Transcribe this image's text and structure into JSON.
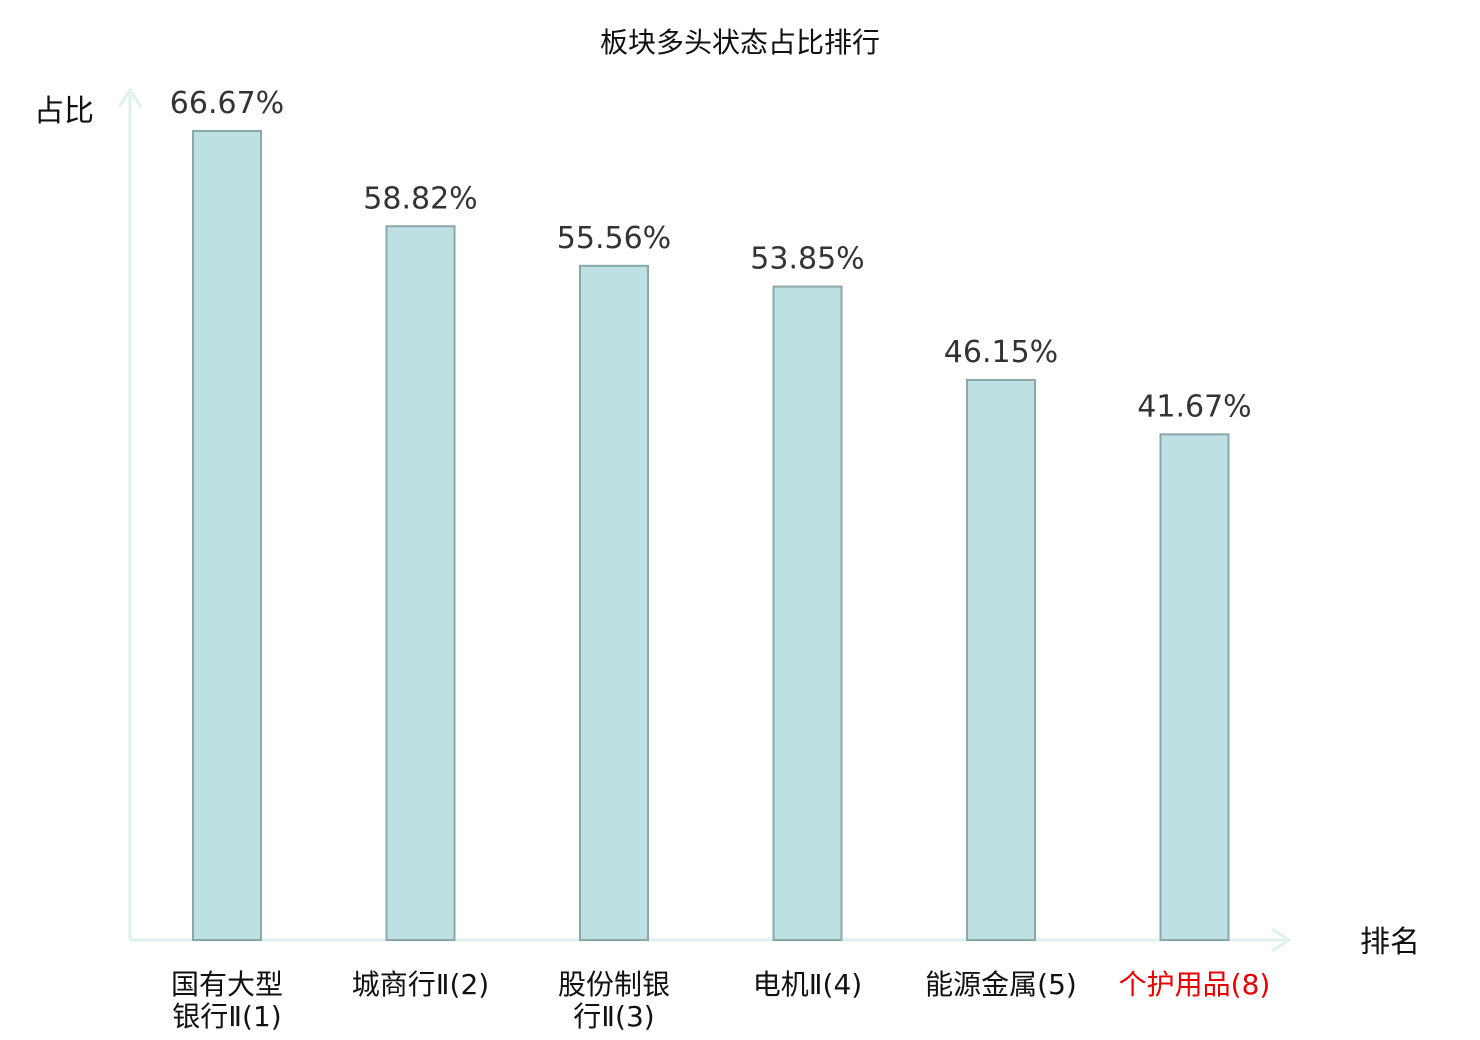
{
  "chart_data": {
    "type": "bar",
    "title": "板块多头状态占比排行",
    "ylabel": "占比",
    "xlabel": "排名",
    "ylim": [
      0,
      70
    ],
    "grid": false,
    "legend": "none",
    "categories": [
      {
        "lines": [
          "国有大型",
          "银行Ⅱ(1)"
        ],
        "highlight": false
      },
      {
        "lines": [
          "城商行Ⅱ(2)"
        ],
        "highlight": false
      },
      {
        "lines": [
          "股份制银",
          "行Ⅱ(3)"
        ],
        "highlight": false
      },
      {
        "lines": [
          "电机Ⅱ(4)"
        ],
        "highlight": false
      },
      {
        "lines": [
          "能源金属(5)"
        ],
        "highlight": false
      },
      {
        "lines": [
          "个护用品(8)"
        ],
        "highlight": true
      }
    ],
    "values": [
      66.67,
      58.82,
      55.56,
      53.85,
      46.15,
      41.67
    ],
    "value_labels": [
      "66.67%",
      "58.82%",
      "55.56%",
      "53.85%",
      "46.15%",
      "41.67%"
    ],
    "colors": {
      "bar_fill": "#bde1e3",
      "bar_stroke": "#8aa7a9",
      "axis": "#dff1ee",
      "text": "#111111",
      "value_text": "#333333",
      "highlight_text": "#e60000"
    }
  }
}
